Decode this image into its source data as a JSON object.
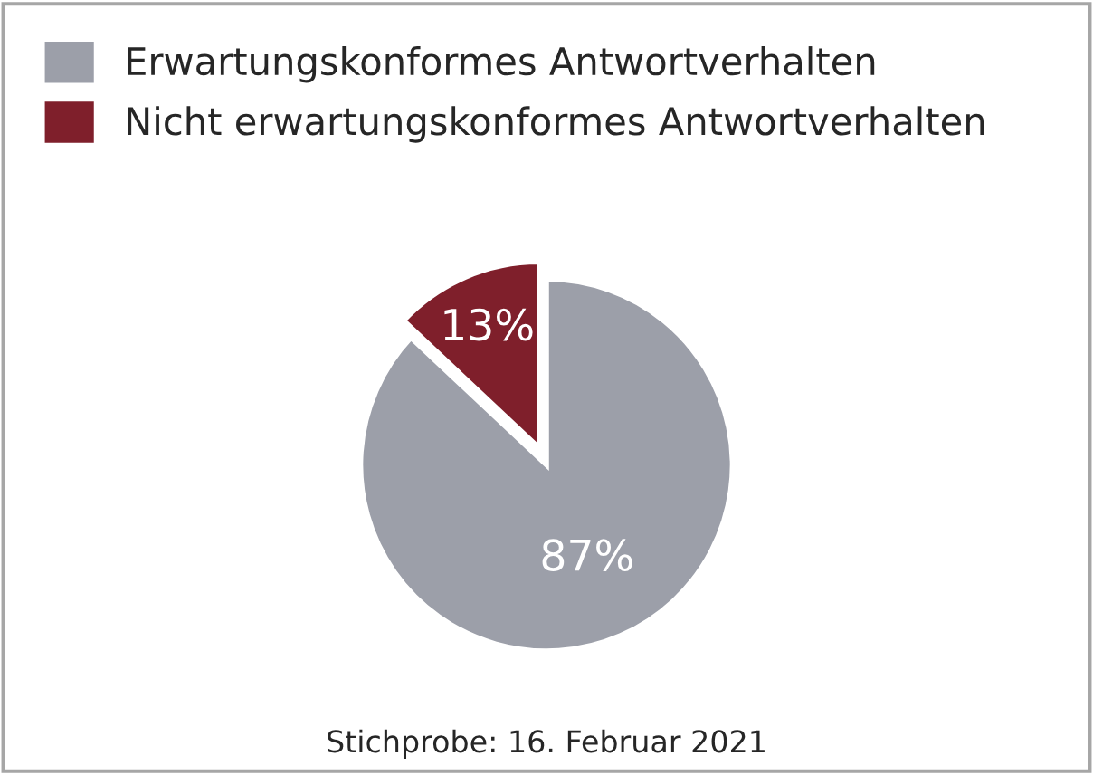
{
  "chart_data": {
    "type": "pie",
    "categories": [
      "Erwartungskonformes Antwortverhalten",
      "Nicht erwartungskonformes Antwortverhalten"
    ],
    "values": [
      87,
      13
    ],
    "colors": [
      "#9c9fa9",
      "#7f1f2b"
    ],
    "value_labels": [
      "87%",
      "13%"
    ],
    "legend": "top",
    "annotations": [
      "Stichprobe: 16. Februar 2021"
    ]
  }
}
